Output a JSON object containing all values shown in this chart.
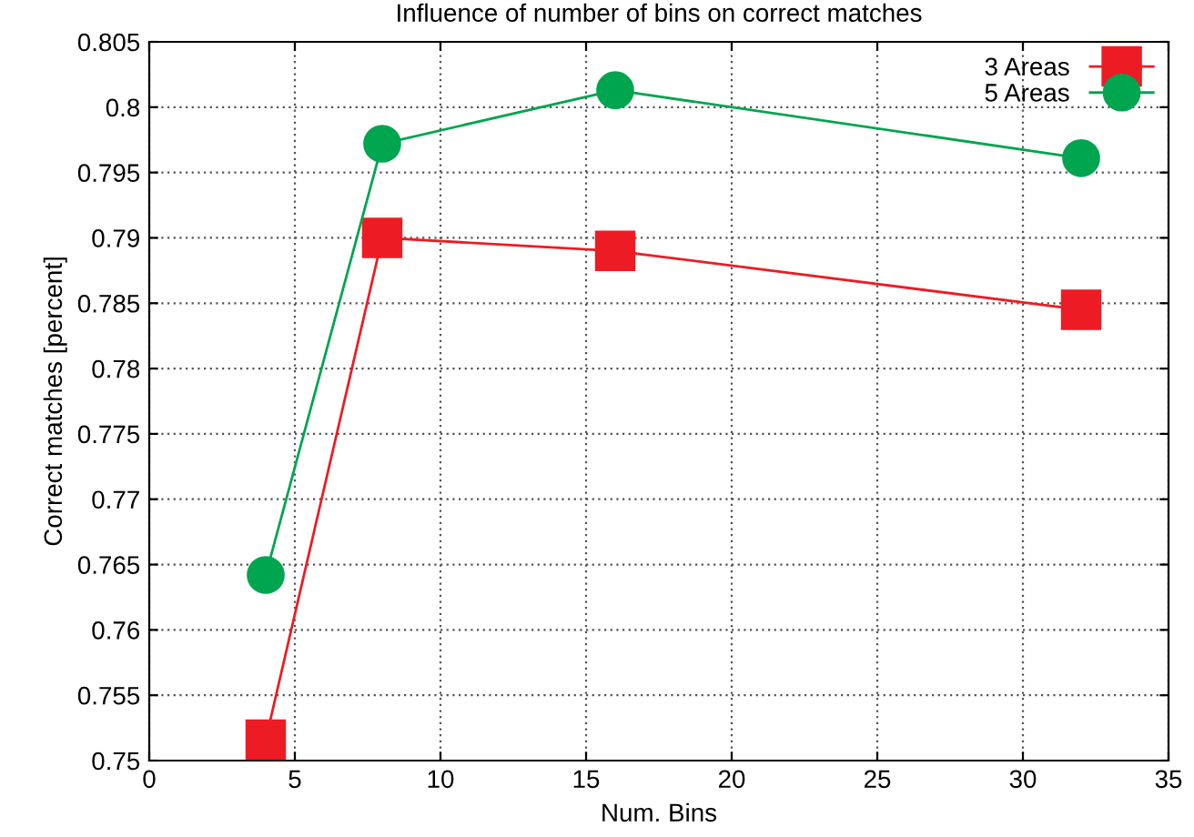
{
  "chart_data": {
    "type": "line",
    "title": "Influence of number of bins on correct matches",
    "xlabel": "Num. Bins",
    "ylabel": "Correct matches [percent]",
    "x": [
      4,
      8,
      16,
      32
    ],
    "series": [
      {
        "name": "3 Areas",
        "color": "#ed1c24",
        "marker": "square",
        "values": [
          0.7516,
          0.79,
          0.789,
          0.7845
        ]
      },
      {
        "name": "5 Areas",
        "color": "#00a54f",
        "marker": "circle",
        "values": [
          0.7642,
          0.7972,
          0.8013,
          0.7961
        ]
      }
    ],
    "xlim": [
      0,
      35
    ],
    "xticks": [
      0,
      5,
      10,
      15,
      20,
      25,
      30,
      35
    ],
    "ylim": [
      0.75,
      0.805
    ],
    "yticks": [
      0.75,
      0.755,
      0.76,
      0.765,
      0.77,
      0.775,
      0.78,
      0.785,
      0.79,
      0.795,
      0.8,
      0.805
    ],
    "grid": true,
    "legend": "top right"
  }
}
